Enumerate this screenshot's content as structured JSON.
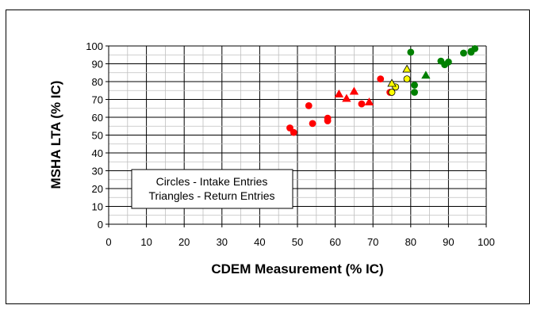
{
  "chart_data": {
    "type": "scatter",
    "xlabel": "CDEM Measurement (% IC)",
    "ylabel": "MSHA LTA (% IC)",
    "xlim": [
      0,
      100
    ],
    "ylim": [
      0,
      100
    ],
    "x_ticks": [
      "0",
      "10",
      "20",
      "30",
      "40",
      "50",
      "60",
      "70",
      "80",
      "90",
      "100"
    ],
    "y_ticks": [
      "0",
      "10",
      "20",
      "30",
      "40",
      "50",
      "60",
      "70",
      "80",
      "90",
      "100"
    ],
    "grid": true,
    "legend_lines": [
      "Circles - Intake Entries",
      "Triangles - Return Entries"
    ],
    "legend_placement": "lower-left",
    "series": [
      {
        "color": "#ff0000",
        "marker": "circle",
        "points": [
          [
            48,
            54
          ],
          [
            49,
            51.5
          ],
          [
            53,
            66.5
          ],
          [
            54,
            56.5
          ],
          [
            58,
            59.5
          ],
          [
            58,
            58
          ],
          [
            67,
            67.5
          ],
          [
            72,
            81.5
          ],
          [
            74.5,
            74
          ]
        ]
      },
      {
        "color": "#ff0000",
        "marker": "triangle",
        "points": [
          [
            61,
            73
          ],
          [
            63,
            70.5
          ],
          [
            65,
            74.5
          ],
          [
            69,
            68.5
          ]
        ]
      },
      {
        "color": "#ffff00",
        "marker": "circle",
        "points": [
          [
            75,
            74
          ],
          [
            76,
            77
          ],
          [
            79,
            81.5
          ]
        ]
      },
      {
        "color": "#ffff00",
        "marker": "triangle",
        "points": [
          [
            75,
            79
          ],
          [
            79,
            87
          ]
        ]
      },
      {
        "color": "#008000",
        "marker": "circle",
        "points": [
          [
            80,
            96.5
          ],
          [
            81,
            78
          ],
          [
            81,
            74
          ],
          [
            88,
            91.5
          ],
          [
            89,
            89.5
          ],
          [
            90,
            91
          ],
          [
            94,
            96
          ],
          [
            96,
            97
          ],
          [
            97,
            98.5
          ],
          [
            96,
            96.5
          ]
        ]
      },
      {
        "color": "#008000",
        "marker": "triangle",
        "points": [
          [
            84,
            83.5
          ]
        ]
      }
    ]
  }
}
